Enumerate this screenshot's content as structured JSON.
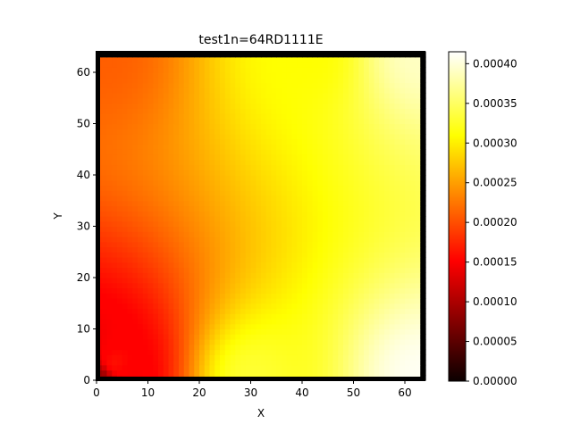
{
  "chart_data": {
    "type": "heatmap",
    "title": "test1n=64RD1111E",
    "xlabel": "X",
    "ylabel": "Y",
    "grid_size": 64,
    "xlim": [
      0,
      64
    ],
    "ylim": [
      0,
      64
    ],
    "x_ticks": [
      0,
      10,
      20,
      30,
      40,
      50,
      60
    ],
    "y_ticks": [
      0,
      10,
      20,
      30,
      40,
      50,
      60
    ],
    "colormap": "hot",
    "colorbar": {
      "vmin": 0.0,
      "vmax": 0.000415,
      "ticks": [
        0.0,
        5e-05,
        0.0001,
        0.00015,
        0.0002,
        0.00025,
        0.0003,
        0.00035,
        0.0004
      ],
      "tick_labels": [
        "0.00000",
        "0.00005",
        "0.00010",
        "0.00015",
        "0.00020",
        "0.00025",
        "0.00030",
        "0.00035",
        "0.00040"
      ]
    },
    "boundary_color": "#000000",
    "field_samples": [
      {
        "x": 0,
        "y": 0,
        "value": 8e-05
      },
      {
        "x": 3,
        "y": 3,
        "value": 0.00016
      },
      {
        "x": 0,
        "y": 63,
        "value": 0.00021
      },
      {
        "x": 30,
        "y": 0,
        "value": 0.00033
      },
      {
        "x": 40,
        "y": 63,
        "value": 0.00031
      },
      {
        "x": 63,
        "y": 0,
        "value": 0.00041
      },
      {
        "x": 63,
        "y": 63,
        "value": 0.00039
      }
    ]
  }
}
